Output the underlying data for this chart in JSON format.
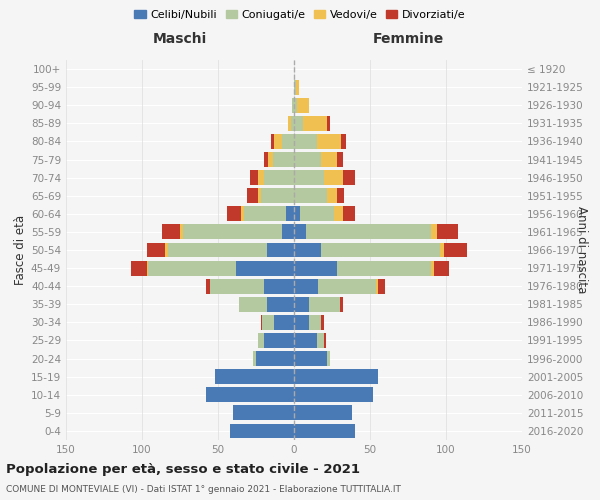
{
  "age_groups": [
    "0-4",
    "5-9",
    "10-14",
    "15-19",
    "20-24",
    "25-29",
    "30-34",
    "35-39",
    "40-44",
    "45-49",
    "50-54",
    "55-59",
    "60-64",
    "65-69",
    "70-74",
    "75-79",
    "80-84",
    "85-89",
    "90-94",
    "95-99",
    "100+"
  ],
  "birth_years": [
    "2016-2020",
    "2011-2015",
    "2006-2010",
    "2001-2005",
    "1996-2000",
    "1991-1995",
    "1986-1990",
    "1981-1985",
    "1976-1980",
    "1971-1975",
    "1966-1970",
    "1961-1965",
    "1956-1960",
    "1951-1955",
    "1946-1950",
    "1941-1945",
    "1936-1940",
    "1931-1935",
    "1926-1930",
    "1921-1925",
    "≤ 1920"
  ],
  "male": {
    "celibe": [
      42,
      40,
      58,
      52,
      25,
      20,
      13,
      18,
      20,
      38,
      18,
      8,
      5,
      0,
      0,
      0,
      0,
      0,
      0,
      0,
      0
    ],
    "coniugato": [
      0,
      0,
      0,
      0,
      2,
      4,
      8,
      18,
      35,
      58,
      65,
      65,
      28,
      22,
      20,
      14,
      8,
      2,
      1,
      0,
      0
    ],
    "vedovo": [
      0,
      0,
      0,
      0,
      0,
      0,
      0,
      0,
      0,
      1,
      2,
      2,
      2,
      2,
      4,
      3,
      5,
      2,
      0,
      0,
      0
    ],
    "divorziato": [
      0,
      0,
      0,
      0,
      0,
      0,
      1,
      0,
      3,
      10,
      12,
      12,
      9,
      7,
      5,
      3,
      2,
      0,
      0,
      0,
      0
    ]
  },
  "female": {
    "nubile": [
      40,
      38,
      52,
      55,
      22,
      15,
      10,
      10,
      16,
      28,
      18,
      8,
      4,
      0,
      0,
      0,
      0,
      0,
      0,
      0,
      0
    ],
    "coniugata": [
      0,
      0,
      0,
      0,
      2,
      5,
      8,
      20,
      38,
      62,
      78,
      82,
      22,
      22,
      20,
      18,
      15,
      6,
      2,
      1,
      0
    ],
    "vedova": [
      0,
      0,
      0,
      0,
      0,
      0,
      0,
      0,
      1,
      2,
      3,
      4,
      6,
      6,
      12,
      10,
      16,
      16,
      8,
      2,
      0
    ],
    "divorziata": [
      0,
      0,
      0,
      0,
      0,
      1,
      2,
      2,
      5,
      10,
      15,
      14,
      8,
      5,
      8,
      4,
      3,
      2,
      0,
      0,
      0
    ]
  },
  "colors": {
    "celibe": "#4a7ab5",
    "coniugato": "#b5c9a0",
    "vedovo": "#f0c050",
    "divorziato": "#c0392b"
  },
  "xlim": 150,
  "title": "Popolazione per età, sesso e stato civile - 2021",
  "subtitle": "COMUNE DI MONTEVIALE (VI) - Dati ISTAT 1° gennaio 2021 - Elaborazione TUTTITALIA.IT",
  "ylabel_left": "Fasce di età",
  "ylabel_right": "Anni di nascita",
  "xlabel_male": "Maschi",
  "xlabel_female": "Femmine",
  "legend_labels": [
    "Celibi/Nubili",
    "Coniugati/e",
    "Vedovi/e",
    "Divorziati/e"
  ],
  "bg_color": "#f5f5f5",
  "tick_color": "#888888",
  "grid_color": "#dddddd"
}
